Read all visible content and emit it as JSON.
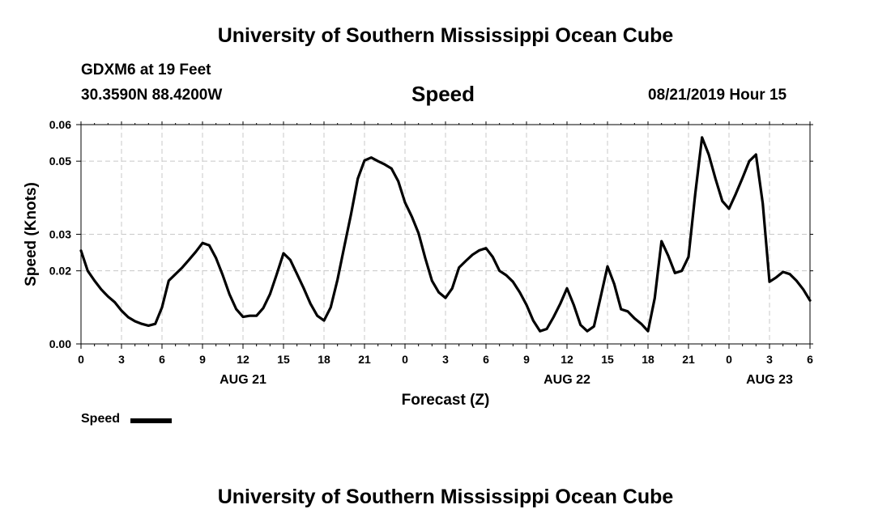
{
  "header": {
    "title": "University of Southern Mississippi Ocean Cube",
    "station": "GDXM6 at 19 Feet",
    "coordinates": "30.3590N 88.4200W",
    "chart_title": "Speed",
    "timestamp": "08/21/2019 Hour 15"
  },
  "footer": {
    "title": "University of Southern Mississippi Ocean Cube"
  },
  "legend": {
    "label": "Speed"
  },
  "chart_data": {
    "type": "line",
    "title": "Speed",
    "xlabel": "Forecast (Z)",
    "ylabel": "Speed (Knots)",
    "ylim": [
      0,
      0.06
    ],
    "yticks": [
      0,
      0.02,
      0.03,
      0.05,
      0.06
    ],
    "ytick_labels": [
      "0.00",
      "0.02",
      "0.03",
      "0.05",
      "0.06"
    ],
    "xlim": [
      0,
      54
    ],
    "xticks": [
      0,
      3,
      6,
      9,
      12,
      15,
      18,
      21,
      24,
      27,
      30,
      33,
      36,
      39,
      42,
      45,
      48,
      51,
      54
    ],
    "xtick_labels": [
      "0",
      "3",
      "6",
      "9",
      "12",
      "15",
      "18",
      "21",
      "0",
      "3",
      "6",
      "9",
      "12",
      "15",
      "18",
      "21",
      "0",
      "3",
      "6"
    ],
    "date_labels": [
      {
        "text": "AUG 21",
        "x": 12
      },
      {
        "text": "AUG 22",
        "x": 36
      },
      {
        "text": "AUG 23",
        "x": 51
      }
    ],
    "grid": true,
    "legend_position": "bottom-left",
    "series": [
      {
        "name": "Speed",
        "color": "#000000",
        "x": [
          0,
          0.5,
          1,
          1.5,
          2,
          2.5,
          3,
          3.5,
          4,
          4.5,
          5,
          5.5,
          6,
          6.5,
          7,
          7.5,
          8,
          8.5,
          9,
          9.5,
          10,
          10.5,
          11,
          11.5,
          12,
          12.5,
          13,
          13.5,
          14,
          14.5,
          15,
          15.5,
          16,
          16.5,
          17,
          17.5,
          18,
          18.5,
          19,
          19.5,
          20,
          20.5,
          21,
          21.5,
          22,
          22.5,
          23,
          23.5,
          24,
          24.5,
          25,
          25.5,
          26,
          26.5,
          27,
          27.5,
          28,
          28.5,
          29,
          29.5,
          30,
          30.5,
          31,
          31.5,
          32,
          32.5,
          33,
          33.5,
          34,
          34.5,
          35,
          35.5,
          36,
          36.5,
          37,
          37.5,
          38,
          38.5,
          39,
          39.5,
          40,
          40.5,
          41,
          41.5,
          42,
          42.5,
          43,
          43.5,
          44,
          44.5,
          45,
          45.5,
          46,
          46.5,
          47,
          47.5,
          48,
          48.5,
          49,
          49.5,
          50,
          50.5,
          51,
          51.5,
          52,
          52.5,
          53,
          53.5,
          54
        ],
        "values": [
          0.0255,
          0.02,
          0.0173,
          0.0149,
          0.013,
          0.0114,
          0.0091,
          0.0073,
          0.0062,
          0.0055,
          0.005,
          0.0055,
          0.01,
          0.0173,
          0.0191,
          0.0209,
          0.023,
          0.0252,
          0.0276,
          0.027,
          0.0235,
          0.0188,
          0.0136,
          0.0095,
          0.0074,
          0.0077,
          0.0077,
          0.0098,
          0.0136,
          0.0191,
          0.0248,
          0.023,
          0.0191,
          0.0152,
          0.011,
          0.0077,
          0.0064,
          0.01,
          0.0176,
          0.0266,
          0.0354,
          0.0452,
          0.0502,
          0.051,
          0.05,
          0.0491,
          0.048,
          0.0445,
          0.0387,
          0.0349,
          0.0303,
          0.0235,
          0.0173,
          0.0141,
          0.0126,
          0.0152,
          0.0209,
          0.0227,
          0.0244,
          0.0256,
          0.0262,
          0.0238,
          0.02,
          0.0188,
          0.017,
          0.0141,
          0.0107,
          0.0064,
          0.0035,
          0.0041,
          0.0073,
          0.011,
          0.0152,
          0.0107,
          0.0052,
          0.0035,
          0.0048,
          0.013,
          0.0212,
          0.0164,
          0.0095,
          0.0089,
          0.007,
          0.0055,
          0.0035,
          0.0125,
          0.0281,
          0.0241,
          0.0194,
          0.02,
          0.0238,
          0.041,
          0.0565,
          0.0518,
          0.0452,
          0.0391,
          0.037,
          0.041,
          0.0454,
          0.05,
          0.0518,
          0.0384,
          0.017,
          0.0182,
          0.0197,
          0.0191,
          0.0173,
          0.0149,
          0.0119
        ]
      }
    ]
  }
}
